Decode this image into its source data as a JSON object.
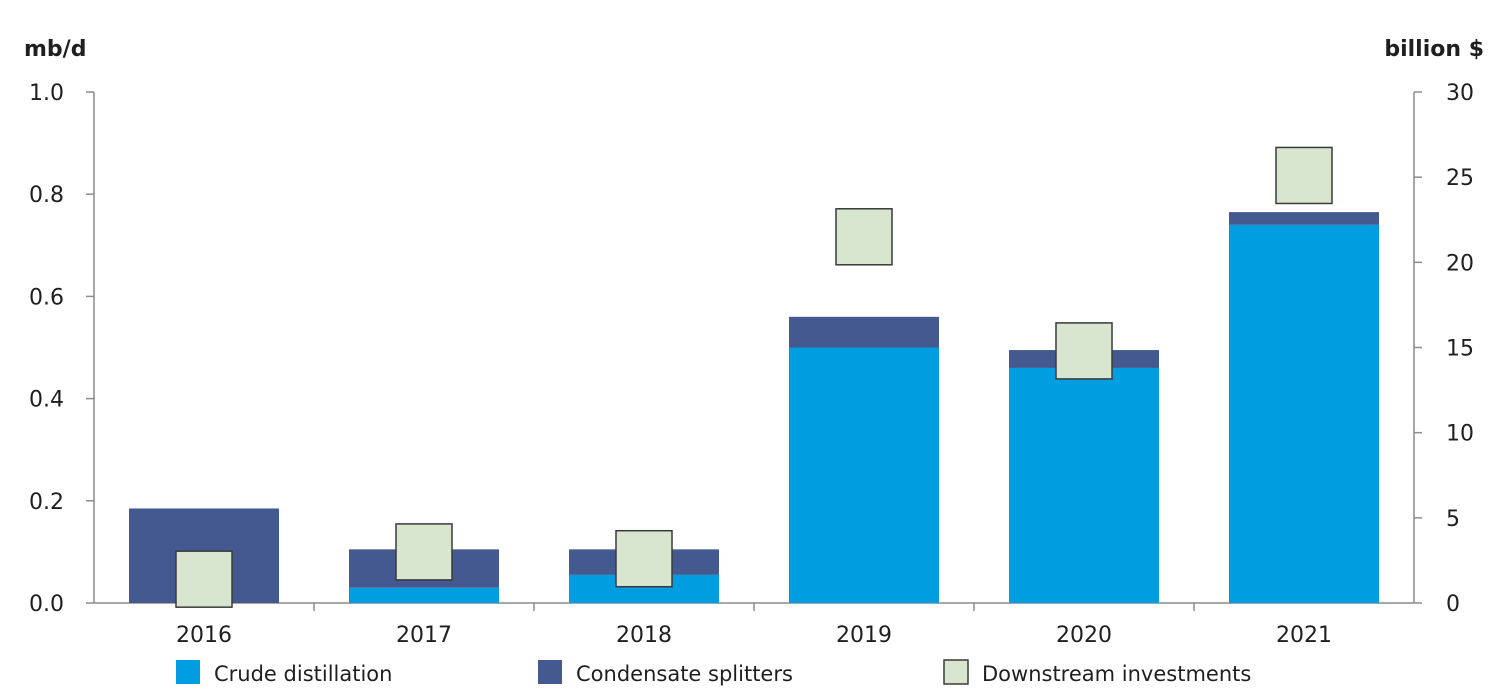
{
  "chart_data": {
    "type": "bar",
    "stacked": true,
    "categories": [
      "2016",
      "2017",
      "2018",
      "2019",
      "2020",
      "2021"
    ],
    "left_axis": {
      "unit": "mb/d",
      "range": [
        0,
        1.0
      ],
      "ticks": [
        "0.0",
        "0.2",
        "0.4",
        "0.6",
        "0.8",
        "1.0"
      ],
      "tick_values": [
        0,
        0.2,
        0.4,
        0.6,
        0.8,
        1.0
      ]
    },
    "right_axis": {
      "unit": "billion $",
      "range": [
        0,
        30
      ],
      "ticks": [
        "0",
        "5",
        "10",
        "15",
        "20",
        "25",
        "30"
      ],
      "tick_values": [
        0,
        5,
        10,
        15,
        20,
        25,
        30
      ]
    },
    "series": [
      {
        "name": "Crude distillation",
        "axis": "left",
        "kind": "bar",
        "color": "#009ee0",
        "values": [
          0.0,
          0.03,
          0.055,
          0.5,
          0.46,
          0.74
        ]
      },
      {
        "name": "Condensate splitters",
        "axis": "left",
        "kind": "bar",
        "color": "#44598f",
        "values": [
          0.185,
          0.075,
          0.05,
          0.06,
          0.035,
          0.025
        ]
      },
      {
        "name": "Downstream investments",
        "axis": "right",
        "kind": "marker",
        "color": "#d9e6cf",
        "values": [
          1.4,
          3.0,
          2.6,
          21.5,
          14.8,
          25.1
        ]
      }
    ],
    "grid": false,
    "legend_position": "bottom"
  }
}
